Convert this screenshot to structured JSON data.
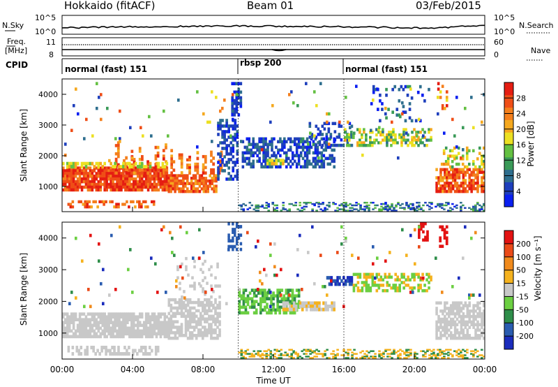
{
  "header": {
    "station": "Hokkaido (fitACF)",
    "beam": "Beam 01",
    "date": "03/Feb/2015"
  },
  "noise_panel": {
    "left_label": "N.Sky",
    "right_label": "N.Search",
    "ticks_left": [
      "10^5",
      "10^0"
    ],
    "ticks_right": [
      "10^5",
      "10^0"
    ]
  },
  "freq_panel": {
    "left_label_1": "Freq.",
    "left_label_2": "[MHz]",
    "ticks_left": [
      "11",
      "8"
    ],
    "right_label": "Nave",
    "ticks_right": [
      "60",
      "0"
    ]
  },
  "cpid_panel": {
    "label": "CPID",
    "segments": [
      {
        "name": "normal (fast) 151",
        "start_h": 0
      },
      {
        "name": "rbsp 200",
        "start_h": 10
      },
      {
        "name": "normal (fast) 151",
        "start_h": 16
      }
    ]
  },
  "chart_data": [
    {
      "type": "heatmap",
      "name": "power",
      "ylabel": "Slant Range [km]",
      "yticks": [
        1000,
        2000,
        3000,
        4000
      ],
      "ylim": [
        180,
        4500
      ],
      "xlim": [
        0,
        24
      ],
      "colorbar": {
        "label": "Power [dB]",
        "ticks": [
          "4",
          "8",
          "12",
          "16",
          "20",
          "24",
          "28"
        ],
        "colors": [
          "#0a1ff0",
          "#1e3fbc",
          "#2e6e8e",
          "#3a9a58",
          "#64c042",
          "#ece022",
          "#f5a81e",
          "#f47f1c",
          "#ef4e17",
          "#e51d12"
        ]
      }
    },
    {
      "type": "heatmap",
      "name": "velocity",
      "ylabel": "Slant Range [km]",
      "yticks": [
        1000,
        2000,
        3000,
        4000
      ],
      "ylim": [
        180,
        4500
      ],
      "xlim": [
        0,
        24
      ],
      "xlabel": "Time UT",
      "xticks": [
        "00:00",
        "04:00",
        "08:00",
        "12:00",
        "16:00",
        "20:00",
        "00:00"
      ],
      "colorbar": {
        "label": "Velocity [m s⁻¹]",
        "ticks": [
          "200",
          "100",
          "50",
          "15",
          "-15",
          "-50",
          "-100",
          "-200"
        ],
        "colors": [
          "#1a2cbc",
          "#2a5cb0",
          "#2f8e4a",
          "#6ccf42",
          "#c8c8c8",
          "#f5b21e",
          "#f08a1c",
          "#ea4a18",
          "#e31212"
        ]
      }
    }
  ]
}
